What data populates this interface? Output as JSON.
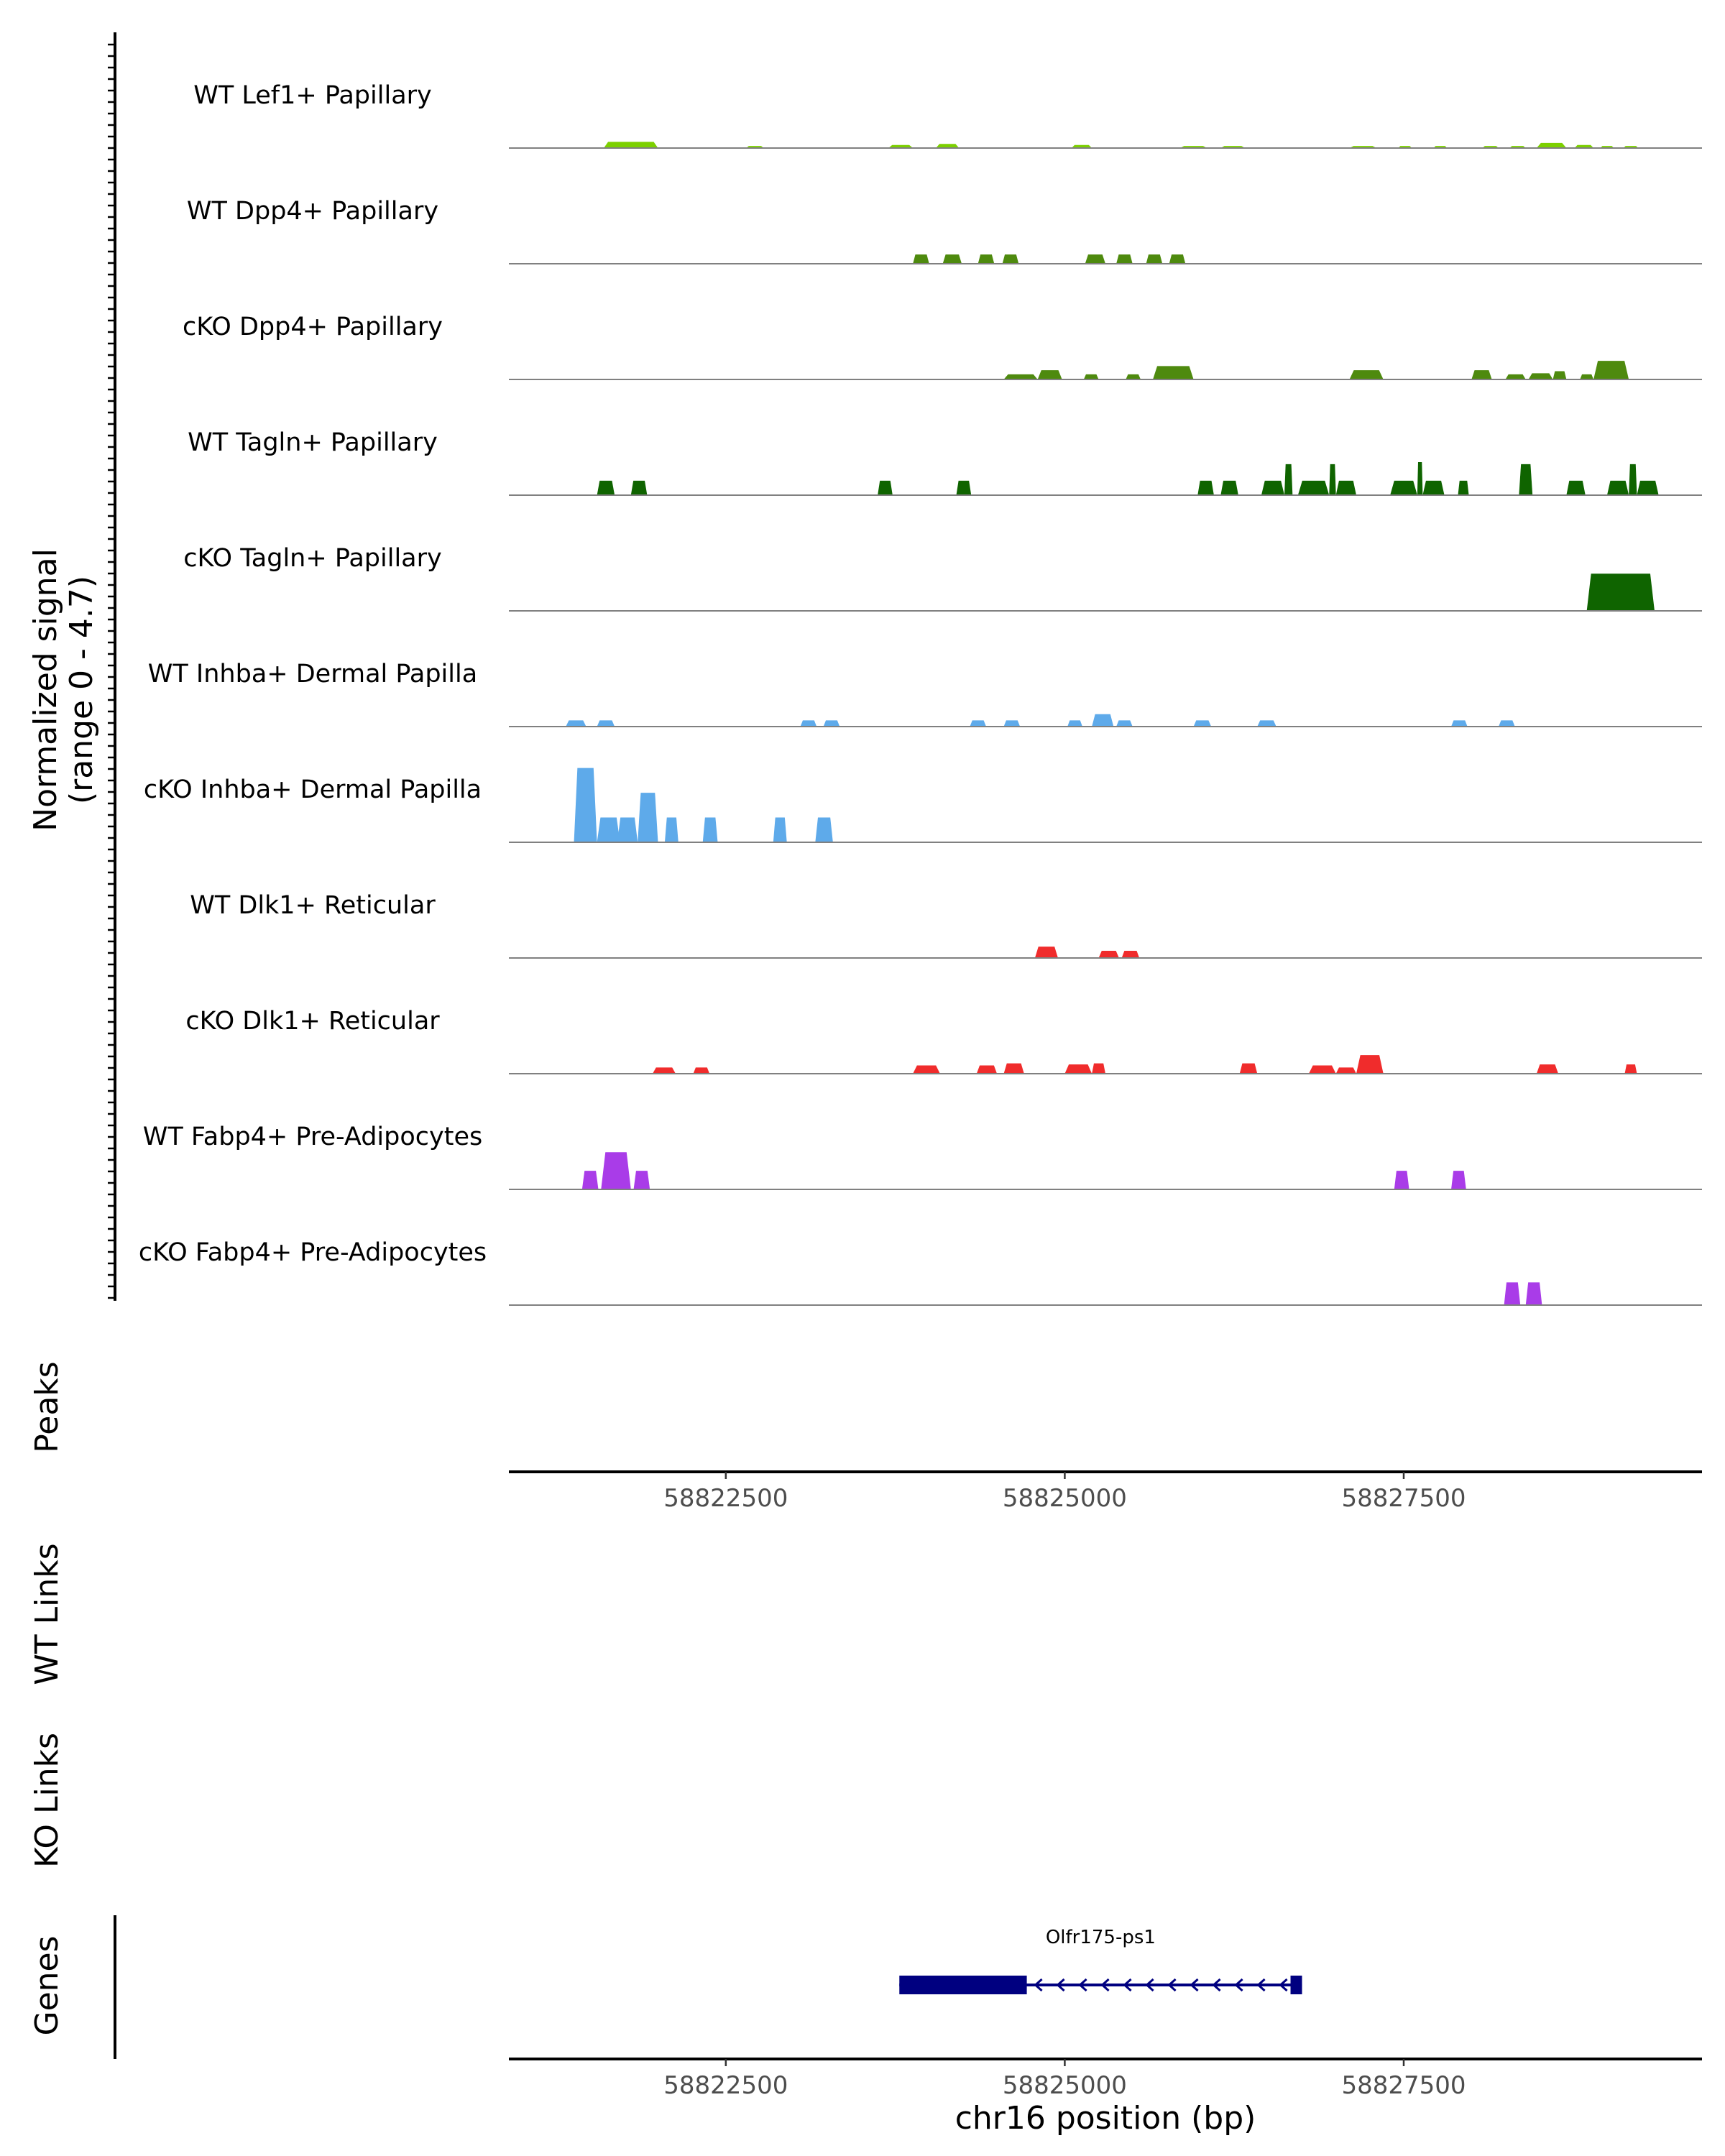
{
  "chart_data": {
    "type": "coverage",
    "chromosome": "chr16",
    "x_range": [
      58820900,
      58829700
    ],
    "y_axis_label": "Normalized signal",
    "y_axis_sublabel": "(range 0 - 4.7)",
    "y_range": [
      0,
      4.7
    ],
    "xlabel": "chr16 position (bp)",
    "x_ticks": [
      58822500,
      58825000,
      58827500
    ],
    "x_tick_labels": [
      "58822500",
      "58825000",
      "58827500"
    ],
    "tracks": [
      {
        "name": "WT Lef1+ Papillary",
        "color": "#7cd000",
        "peaks": [
          [
            58821600,
            58822000,
            0.3
          ],
          [
            58822650,
            58822780,
            0.1
          ],
          [
            58823700,
            58823880,
            0.15
          ],
          [
            58824050,
            58824220,
            0.2
          ],
          [
            58825050,
            58825200,
            0.15
          ],
          [
            58825850,
            58826050,
            0.1
          ],
          [
            58826150,
            58826330,
            0.1
          ],
          [
            58827100,
            58827300,
            0.1
          ],
          [
            58827460,
            58827560,
            0.1
          ],
          [
            58827720,
            58827820,
            0.1
          ],
          [
            58828080,
            58828200,
            0.1
          ],
          [
            58828280,
            58828400,
            0.1
          ],
          [
            58828480,
            58828700,
            0.25
          ],
          [
            58828760,
            58828900,
            0.15
          ],
          [
            58828950,
            58829050,
            0.1
          ],
          [
            58829120,
            58829230,
            0.1
          ]
        ]
      },
      {
        "name": "WT Dpp4+ Papillary",
        "color": "#4e8a0e",
        "peaks": [
          [
            58823880,
            58824000,
            0.45
          ],
          [
            58824100,
            58824240,
            0.45
          ],
          [
            58824360,
            58824480,
            0.45
          ],
          [
            58824540,
            58824660,
            0.45
          ],
          [
            58825150,
            58825300,
            0.45
          ],
          [
            58825380,
            58825500,
            0.45
          ],
          [
            58825600,
            58825720,
            0.45
          ],
          [
            58825770,
            58825890,
            0.45
          ]
        ]
      },
      {
        "name": "cKO Dpp4+ Papillary",
        "color": "#4e8a0e",
        "peaks": [
          [
            58824550,
            58824800,
            0.25
          ],
          [
            58824800,
            58824980,
            0.45
          ],
          [
            58825140,
            58825250,
            0.25
          ],
          [
            58825450,
            58825560,
            0.25
          ],
          [
            58825650,
            58825950,
            0.65
          ],
          [
            58827100,
            58827350,
            0.45
          ],
          [
            58828000,
            58828150,
            0.45
          ],
          [
            58828250,
            58828400,
            0.25
          ],
          [
            58828420,
            58828600,
            0.3
          ],
          [
            58828600,
            58828700,
            0.4
          ],
          [
            58828800,
            58828900,
            0.25
          ],
          [
            58828900,
            58829160,
            0.9
          ]
        ]
      },
      {
        "name": "WT Tagln+ Papillary",
        "color": "#0f6400",
        "peaks": [
          [
            58821550,
            58821680,
            0.7
          ],
          [
            58821800,
            58821920,
            0.7
          ],
          [
            58823620,
            58823730,
            0.7
          ],
          [
            58824200,
            58824310,
            0.7
          ],
          [
            58825980,
            58826100,
            0.7
          ],
          [
            58826150,
            58826280,
            0.7
          ],
          [
            58826450,
            58826620,
            0.7
          ],
          [
            58826620,
            58826680,
            1.5
          ],
          [
            58826720,
            58826950,
            0.7
          ],
          [
            58826950,
            58827000,
            1.5
          ],
          [
            58827000,
            58827150,
            0.7
          ],
          [
            58827400,
            58827600,
            0.7
          ],
          [
            58827600,
            58827640,
            1.6
          ],
          [
            58827640,
            58827800,
            0.7
          ],
          [
            58827900,
            58827980,
            0.7
          ],
          [
            58828350,
            58828450,
            1.5
          ],
          [
            58828700,
            58828840,
            0.7
          ],
          [
            58829000,
            58829160,
            0.7
          ],
          [
            58829160,
            58829220,
            1.5
          ],
          [
            58829220,
            58829380,
            0.7
          ]
        ]
      },
      {
        "name": "cKO Tagln+ Papillary",
        "color": "#0f6400",
        "peaks": [
          [
            58828850,
            58829350,
            1.8
          ]
        ]
      },
      {
        "name": "WT Inhba+ Dermal Papilla",
        "color": "#5eaaea",
        "peaks": [
          [
            58821320,
            58821470,
            0.3
          ],
          [
            58821550,
            58821680,
            0.3
          ],
          [
            58823050,
            58823170,
            0.3
          ],
          [
            58823220,
            58823340,
            0.3
          ],
          [
            58824300,
            58824420,
            0.3
          ],
          [
            58824550,
            58824670,
            0.3
          ],
          [
            58825020,
            58825130,
            0.3
          ],
          [
            58825200,
            58825360,
            0.6
          ],
          [
            58825380,
            58825500,
            0.3
          ],
          [
            58825950,
            58826080,
            0.3
          ],
          [
            58826420,
            58826560,
            0.3
          ],
          [
            58827850,
            58827970,
            0.3
          ],
          [
            58828200,
            58828320,
            0.3
          ]
        ]
      },
      {
        "name": "cKO Inhba+ Dermal Papilla",
        "color": "#5eaaea",
        "peaks": [
          [
            58821380,
            58821550,
            3.6
          ],
          [
            58821550,
            58821720,
            1.2
          ],
          [
            58821700,
            58821850,
            1.2
          ],
          [
            58821850,
            58822000,
            2.4
          ],
          [
            58822050,
            58822150,
            1.2
          ],
          [
            58822330,
            58822440,
            1.2
          ],
          [
            58822850,
            58822950,
            1.2
          ],
          [
            58823160,
            58823290,
            1.2
          ]
        ]
      },
      {
        "name": "WT Dlk1+ Reticular",
        "color": "#f02c2c",
        "peaks": [
          [
            58824780,
            58824950,
            0.55
          ],
          [
            58825250,
            58825400,
            0.35
          ],
          [
            58825420,
            58825550,
            0.35
          ]
        ]
      },
      {
        "name": "cKO Dlk1+ Reticular",
        "color": "#f02c2c",
        "peaks": [
          [
            58821960,
            58822130,
            0.3
          ],
          [
            58822260,
            58822380,
            0.3
          ],
          [
            58823880,
            58824080,
            0.4
          ],
          [
            58824350,
            58824500,
            0.4
          ],
          [
            58824550,
            58824700,
            0.5
          ],
          [
            58825000,
            58825200,
            0.45
          ],
          [
            58825200,
            58825300,
            0.5
          ],
          [
            58826290,
            58826420,
            0.5
          ],
          [
            58826800,
            58827000,
            0.4
          ],
          [
            58827000,
            58827150,
            0.3
          ],
          [
            58827150,
            58827350,
            0.9
          ],
          [
            58828480,
            58828640,
            0.45
          ],
          [
            58829130,
            58829220,
            0.45
          ]
        ]
      },
      {
        "name": "WT Fabp4+ Pre-Adipocytes",
        "color": "#a93ce8",
        "peaks": [
          [
            58821440,
            58821560,
            0.9
          ],
          [
            58821580,
            58821800,
            1.8
          ],
          [
            58821820,
            58821940,
            0.9
          ],
          [
            58827430,
            58827540,
            0.9
          ],
          [
            58827850,
            58827960,
            0.9
          ]
        ]
      },
      {
        "name": "cKO Fabp4+ Pre-Adipocytes",
        "color": "#a93ce8",
        "peaks": [
          [
            58828240,
            58828360,
            1.1
          ],
          [
            58828400,
            58828520,
            1.1
          ]
        ]
      }
    ],
    "panel_labels": {
      "peaks": "Peaks",
      "wt_links": "WT Links",
      "ko_links": "KO Links",
      "genes": "Genes"
    },
    "gene": {
      "name": "Olfr175-ps1",
      "strand": "-",
      "start": 58823780,
      "end": 58826750,
      "thick_start": 58823780,
      "thick_end": 58824720,
      "color": "#000080"
    }
  }
}
